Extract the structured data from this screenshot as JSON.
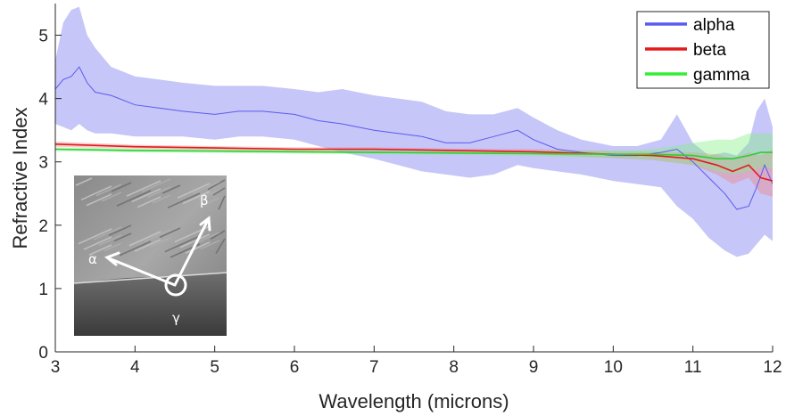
{
  "chart_data": {
    "type": "line",
    "xlabel": "Wavelength (microns)",
    "ylabel": "Refractive Index",
    "xlim": [
      3,
      12
    ],
    "ylim": [
      0,
      5.5
    ],
    "x_ticks": [
      "3",
      "4",
      "5",
      "6",
      "7",
      "8",
      "9",
      "10",
      "11",
      "12"
    ],
    "y_ticks": [
      "0",
      "1",
      "2",
      "3",
      "4",
      "5"
    ],
    "grid": false,
    "legend_position": "top-right",
    "series": [
      {
        "name": "alpha",
        "color": "#5b5bf0",
        "band_color": "#8080f0",
        "x": [
          3.0,
          3.1,
          3.2,
          3.3,
          3.4,
          3.5,
          3.7,
          4.0,
          4.3,
          4.6,
          5.0,
          5.3,
          5.6,
          6.0,
          6.3,
          6.6,
          7.0,
          7.3,
          7.6,
          7.9,
          8.2,
          8.5,
          8.8,
          9.0,
          9.3,
          9.6,
          10.0,
          10.3,
          10.6,
          10.8,
          11.0,
          11.2,
          11.4,
          11.55,
          11.7,
          11.8,
          11.9,
          12.0
        ],
        "values": [
          4.15,
          4.3,
          4.35,
          4.5,
          4.25,
          4.1,
          4.05,
          3.9,
          3.85,
          3.8,
          3.75,
          3.8,
          3.8,
          3.75,
          3.65,
          3.6,
          3.5,
          3.45,
          3.4,
          3.3,
          3.3,
          3.4,
          3.5,
          3.35,
          3.2,
          3.15,
          3.1,
          3.1,
          3.15,
          3.2,
          3.0,
          2.75,
          2.5,
          2.25,
          2.3,
          2.6,
          2.95,
          2.65
        ],
        "upper": [
          4.6,
          5.2,
          5.4,
          5.45,
          5.0,
          4.8,
          4.5,
          4.35,
          4.3,
          4.25,
          4.2,
          4.2,
          4.2,
          4.15,
          4.1,
          4.15,
          4.05,
          4.0,
          3.95,
          3.8,
          3.75,
          3.75,
          3.85,
          3.7,
          3.5,
          3.35,
          3.25,
          3.25,
          3.35,
          3.75,
          3.3,
          3.1,
          3.15,
          3.1,
          3.3,
          3.8,
          4.0,
          3.55
        ],
        "lower": [
          3.6,
          3.55,
          3.5,
          3.6,
          3.5,
          3.45,
          3.45,
          3.4,
          3.4,
          3.4,
          3.35,
          3.4,
          3.4,
          3.35,
          3.25,
          3.15,
          3.05,
          2.95,
          2.85,
          2.8,
          2.75,
          2.8,
          2.95,
          2.9,
          2.85,
          2.8,
          2.7,
          2.65,
          2.6,
          2.3,
          2.1,
          1.8,
          1.6,
          1.5,
          1.55,
          1.7,
          1.85,
          1.75
        ]
      },
      {
        "name": "beta",
        "color": "#e41a1c",
        "band_color": "#f08080",
        "x": [
          3.0,
          4.0,
          5.0,
          6.0,
          7.0,
          8.0,
          9.0,
          10.0,
          10.5,
          11.0,
          11.3,
          11.5,
          11.7,
          11.85,
          12.0
        ],
        "values": [
          3.28,
          3.24,
          3.22,
          3.2,
          3.2,
          3.18,
          3.16,
          3.12,
          3.1,
          3.05,
          2.95,
          2.85,
          2.95,
          2.75,
          2.7
        ],
        "upper": [
          3.32,
          3.27,
          3.25,
          3.23,
          3.23,
          3.21,
          3.2,
          3.17,
          3.16,
          3.15,
          3.12,
          3.05,
          3.15,
          3.1,
          3.2
        ],
        "lower": [
          3.24,
          3.21,
          3.19,
          3.17,
          3.17,
          3.15,
          3.12,
          3.06,
          3.03,
          2.95,
          2.8,
          2.65,
          2.75,
          2.5,
          2.45
        ]
      },
      {
        "name": "gamma",
        "color": "#33cc33",
        "band_color": "#80f080",
        "x": [
          3.0,
          4.0,
          5.0,
          6.0,
          7.0,
          8.0,
          9.0,
          10.0,
          10.5,
          11.0,
          11.3,
          11.5,
          11.7,
          11.85,
          12.0
        ],
        "values": [
          3.2,
          3.18,
          3.17,
          3.16,
          3.15,
          3.14,
          3.13,
          3.12,
          3.12,
          3.1,
          3.05,
          3.05,
          3.1,
          3.15,
          3.15
        ],
        "upper": [
          3.23,
          3.21,
          3.2,
          3.19,
          3.18,
          3.17,
          3.17,
          3.18,
          3.2,
          3.3,
          3.35,
          3.35,
          3.45,
          3.45,
          3.45
        ],
        "lower": [
          3.17,
          3.15,
          3.14,
          3.13,
          3.12,
          3.11,
          3.09,
          3.06,
          3.03,
          2.95,
          2.85,
          2.8,
          2.85,
          2.9,
          2.9
        ]
      }
    ],
    "inset_image": {
      "labels": [
        "α",
        "β",
        "γ"
      ]
    }
  }
}
